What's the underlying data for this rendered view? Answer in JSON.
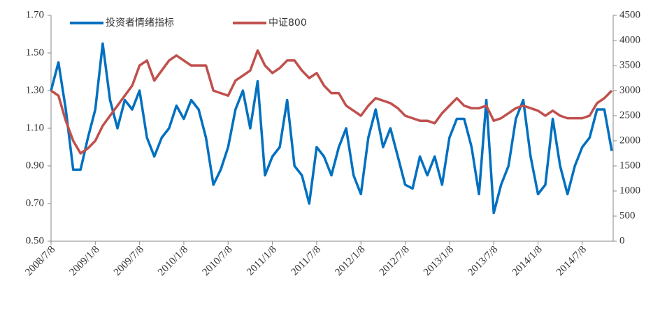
{
  "chart_data": {
    "type": "line",
    "categories": [
      "2008/7/8",
      null,
      null,
      null,
      null,
      null,
      "2009/1/8",
      null,
      null,
      null,
      null,
      null,
      "2009/7/8",
      null,
      null,
      null,
      null,
      null,
      "2010/1/8",
      null,
      null,
      null,
      null,
      null,
      "2010/7/8",
      null,
      null,
      null,
      null,
      null,
      "2011/1/8",
      null,
      null,
      null,
      null,
      null,
      "2011/7/8",
      null,
      null,
      null,
      null,
      null,
      "2012/1/8",
      null,
      null,
      null,
      null,
      null,
      "2012/7/8",
      null,
      null,
      null,
      null,
      null,
      "2013/1/8",
      null,
      null,
      null,
      null,
      null,
      "2013/7/8",
      null,
      null,
      null,
      null,
      null,
      "2014/1/8",
      null,
      null,
      null,
      null,
      null,
      "2014/7/8",
      null,
      null,
      null,
      null
    ],
    "series": [
      {
        "name": "投资者情绪指标",
        "color": "#0070c0",
        "axis": "y",
        "values": [
          1.3,
          1.45,
          1.2,
          0.88,
          0.88,
          1.05,
          1.2,
          1.55,
          1.25,
          1.1,
          1.25,
          1.2,
          1.3,
          1.05,
          0.95,
          1.05,
          1.1,
          1.22,
          1.15,
          1.25,
          1.2,
          1.05,
          0.8,
          0.88,
          1.0,
          1.2,
          1.3,
          1.1,
          1.35,
          0.85,
          0.95,
          1.0,
          1.25,
          0.9,
          0.85,
          0.7,
          1.0,
          0.95,
          0.85,
          1.0,
          1.1,
          0.85,
          0.75,
          1.05,
          1.2,
          1.0,
          1.1,
          0.95,
          0.8,
          0.78,
          0.95,
          0.85,
          0.95,
          0.8,
          1.05,
          1.15,
          1.15,
          1.0,
          0.75,
          1.25,
          0.65,
          0.8,
          0.9,
          1.15,
          1.25,
          0.95,
          0.75,
          0.8,
          1.15,
          0.9,
          0.75,
          0.9,
          1.0,
          1.05,
          1.2,
          1.2,
          0.98
        ]
      },
      {
        "name": "中证800",
        "color": "#c0504d",
        "axis": "y2",
        "values": [
          3000,
          2900,
          2400,
          2000,
          1750,
          1850,
          2000,
          2300,
          2500,
          2700,
          2900,
          3100,
          3500,
          3600,
          3200,
          3400,
          3600,
          3700,
          3600,
          3500,
          3500,
          3500,
          3000,
          2950,
          2900,
          3200,
          3300,
          3400,
          3800,
          3500,
          3350,
          3450,
          3600,
          3600,
          3400,
          3250,
          3350,
          3100,
          2950,
          2950,
          2700,
          2600,
          2500,
          2700,
          2850,
          2800,
          2750,
          2650,
          2500,
          2450,
          2400,
          2400,
          2350,
          2550,
          2700,
          2850,
          2700,
          2650,
          2650,
          2700,
          2400,
          2450,
          2550,
          2650,
          2700,
          2650,
          2600,
          2500,
          2600,
          2500,
          2450,
          2450,
          2450,
          2500,
          2750,
          2850,
          3000
        ]
      }
    ],
    "ylim": [
      0.5,
      1.7
    ],
    "yticks": [
      {
        "value": 0.5,
        "label": "0.50"
      },
      {
        "value": 0.7,
        "label": "0.70"
      },
      {
        "value": 0.9,
        "label": "0.90"
      },
      {
        "value": 1.1,
        "label": "1.10"
      },
      {
        "value": 1.3,
        "label": "1.30"
      },
      {
        "value": 1.5,
        "label": "1.50"
      },
      {
        "value": 1.7,
        "label": "1.70"
      }
    ],
    "y2lim": [
      0,
      4500
    ],
    "y2ticks": [
      0,
      500,
      1000,
      1500,
      2000,
      2500,
      3000,
      3500,
      4000,
      4500
    ],
    "grid": false,
    "legend": "top-left"
  }
}
